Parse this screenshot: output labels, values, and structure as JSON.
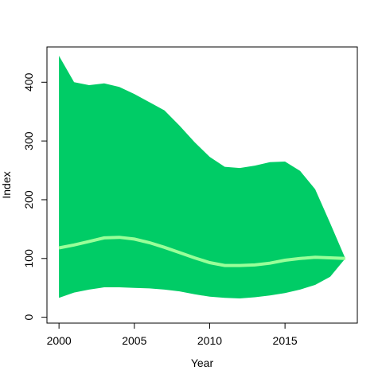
{
  "chart_data": {
    "type": "area",
    "xlabel": "Year",
    "ylabel": "Index",
    "xlim": [
      1999.2,
      2019.8
    ],
    "ylim": [
      -10,
      460
    ],
    "x_ticks": [
      2000,
      2005,
      2010,
      2015
    ],
    "y_ticks": [
      0,
      100,
      200,
      300,
      400
    ],
    "grid": false,
    "colors": {
      "band": "#00cc66",
      "line": "#99ff99",
      "axis": "#000000"
    },
    "x": [
      2000,
      2001,
      2002,
      2003,
      2004,
      2005,
      2006,
      2007,
      2008,
      2009,
      2010,
      2011,
      2012,
      2013,
      2014,
      2015,
      2016,
      2017,
      2018,
      2019
    ],
    "series": [
      {
        "role": "upper",
        "values": [
          445,
          400,
          395,
          398,
          392,
          380,
          366,
          352,
          326,
          298,
          273,
          256,
          254,
          258,
          264,
          265,
          249,
          218,
          160,
          100
        ]
      },
      {
        "role": "lower",
        "values": [
          33,
          42,
          47,
          51,
          51,
          50,
          49,
          47,
          44,
          39,
          35,
          33,
          32,
          34,
          37,
          41,
          47,
          55,
          69,
          100
        ]
      },
      {
        "role": "trend",
        "values": [
          118,
          123,
          129,
          135,
          136,
          133,
          127,
          119,
          110,
          101,
          93,
          88,
          88,
          89,
          92,
          97,
          100,
          102,
          101,
          100
        ]
      }
    ]
  }
}
